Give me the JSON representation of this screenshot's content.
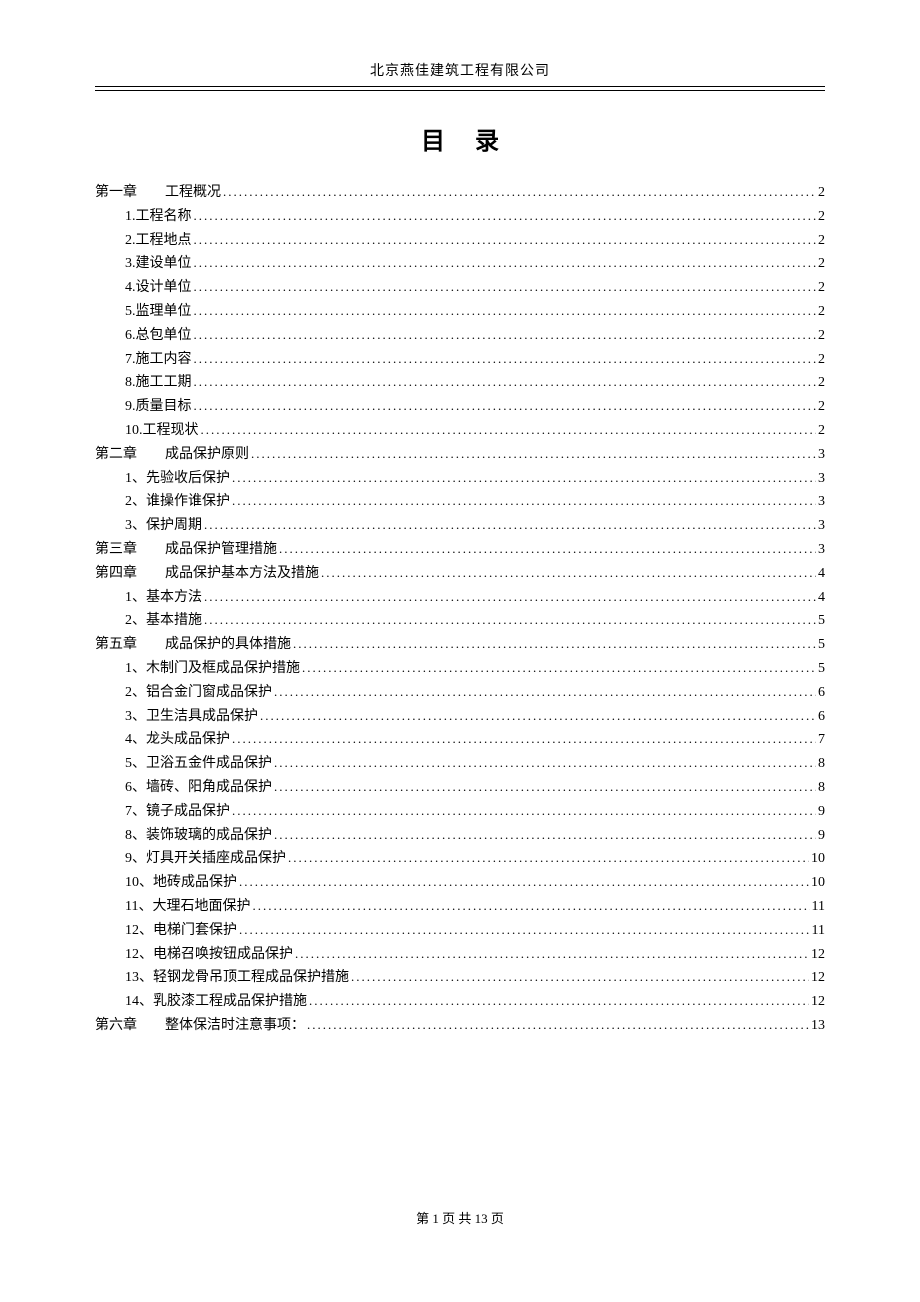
{
  "header": "北京燕佳建筑工程有限公司",
  "title": "目录",
  "footer": "第 1 页 共 13 页",
  "toc": [
    {
      "level": 1,
      "label": "第一章　　工程概况",
      "page": 2
    },
    {
      "level": 2,
      "label": "1.工程名称",
      "page": 2
    },
    {
      "level": 2,
      "label": "2.工程地点",
      "page": 2
    },
    {
      "level": 2,
      "label": "3.建设单位",
      "page": 2
    },
    {
      "level": 2,
      "label": "4.设计单位",
      "page": 2
    },
    {
      "level": 2,
      "label": "5.监理单位",
      "page": 2
    },
    {
      "level": 2,
      "label": "6.总包单位",
      "page": 2
    },
    {
      "level": 2,
      "label": "7.施工内容",
      "page": 2
    },
    {
      "level": 2,
      "label": "8.施工工期",
      "page": 2
    },
    {
      "level": 2,
      "label": "9.质量目标",
      "page": 2
    },
    {
      "level": 2,
      "label": "10.工程现状",
      "page": 2
    },
    {
      "level": 1,
      "label": "第二章　　成品保护原则",
      "page": 3
    },
    {
      "level": 2,
      "label": "1、先验收后保护",
      "page": 3
    },
    {
      "level": 2,
      "label": "2、谁操作谁保护",
      "page": 3
    },
    {
      "level": 2,
      "label": "3、保护周期",
      "page": 3
    },
    {
      "level": 1,
      "label": "第三章　　成品保护管理措施",
      "page": 3
    },
    {
      "level": 1,
      "label": "第四章　　成品保护基本方法及措施",
      "page": 4
    },
    {
      "level": 2,
      "label": "1、基本方法",
      "page": 4
    },
    {
      "level": 2,
      "label": "2、基本措施",
      "page": 5
    },
    {
      "level": 1,
      "label": "第五章　　成品保护的具体措施",
      "page": 5
    },
    {
      "level": 2,
      "label": "1、木制门及框成品保护措施",
      "page": 5
    },
    {
      "level": 2,
      "label": "2、铝合金门窗成品保护",
      "page": 6
    },
    {
      "level": 2,
      "label": "3、卫生洁具成品保护",
      "page": 6
    },
    {
      "level": 2,
      "label": "4、龙头成品保护",
      "page": 7
    },
    {
      "level": 2,
      "label": "5、卫浴五金件成品保护",
      "page": 8
    },
    {
      "level": 2,
      "label": "6、墙砖、阳角成品保护",
      "page": 8
    },
    {
      "level": 2,
      "label": "7、镜子成品保护",
      "page": 9
    },
    {
      "level": 2,
      "label": "8、装饰玻璃的成品保护",
      "page": 9
    },
    {
      "level": 2,
      "label": "9、灯具开关插座成品保护",
      "page": 10
    },
    {
      "level": 2,
      "label": "10、地砖成品保护",
      "page": 10
    },
    {
      "level": 2,
      "label": "11、大理石地面保护",
      "page": 11
    },
    {
      "level": 2,
      "label": "12、电梯门套保护",
      "page": 11
    },
    {
      "level": 2,
      "label": "12、电梯召唤按钮成品保护",
      "page": 12
    },
    {
      "level": 2,
      "label": "13、轻钢龙骨吊顶工程成品保护措施",
      "page": 12
    },
    {
      "level": 2,
      "label": "14、乳胶漆工程成品保护措施",
      "page": 12
    },
    {
      "level": 1,
      "label": "第六章　　整体保洁时注意事项：",
      "page": 13
    }
  ]
}
